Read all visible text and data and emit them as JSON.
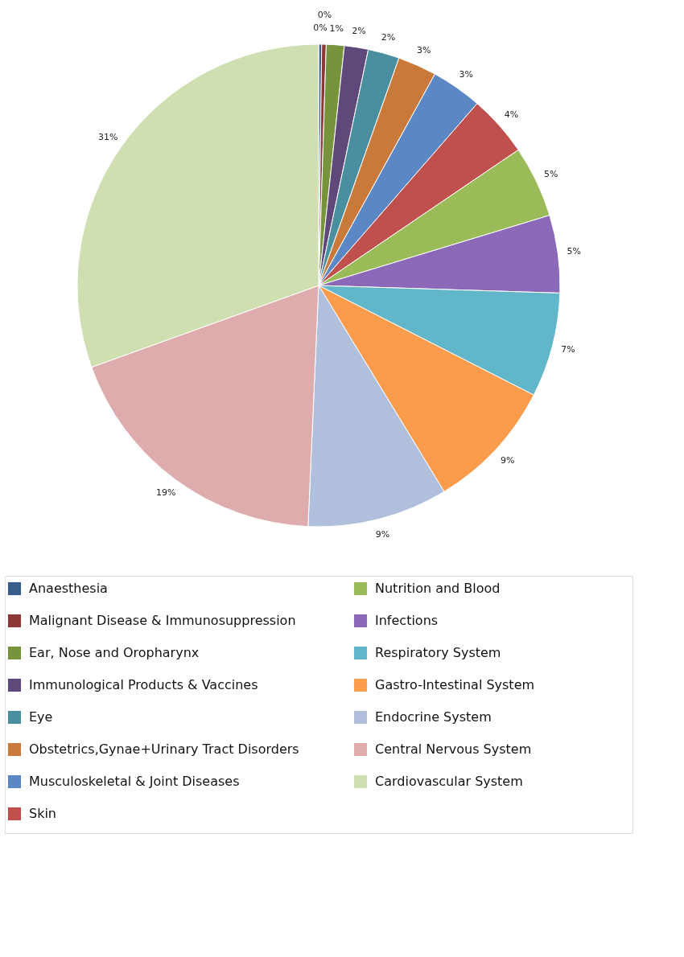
{
  "chart_data": {
    "type": "pie",
    "categories": [
      "Anaesthesia",
      "Malignant Disease & Immunosuppression",
      "Ear, Nose and Oropharynx",
      "Immunological Products & Vaccines",
      "Eye",
      "Obstetrics,Gynae+Urinary Tract Disorders",
      "Musculoskeletal & Joint Diseases",
      "Skin",
      "Nutrition and Blood",
      "Infections",
      "Respiratory System",
      "Gastro-Intestinal System",
      "Endocrine System",
      "Central Nervous System",
      "Cardiovascular System"
    ],
    "values": [
      0.2,
      0.3,
      1.2,
      1.6,
      2.1,
      2.6,
      3.4,
      4.1,
      4.8,
      5.2,
      7.0,
      8.8,
      9.4,
      18.8,
      30.5
    ],
    "value_labels": [
      "0%",
      "0%",
      "1%",
      "2%",
      "2%",
      "3%",
      "3%",
      "4%",
      "5%",
      "5%",
      "7%",
      "9%",
      "9%",
      "19%",
      "31%"
    ],
    "colors": [
      "#385d8a",
      "#8c3836",
      "#77933c",
      "#5f497a",
      "#4a8fa0",
      "#c97a3a",
      "#5b87c4",
      "#c0504d",
      "#9bbb59",
      "#8c69b8",
      "#62b6ca",
      "#fa9c4c",
      "#afbfdc",
      "#dfacad",
      "#cfdfb2"
    ],
    "legend": "bottom"
  }
}
